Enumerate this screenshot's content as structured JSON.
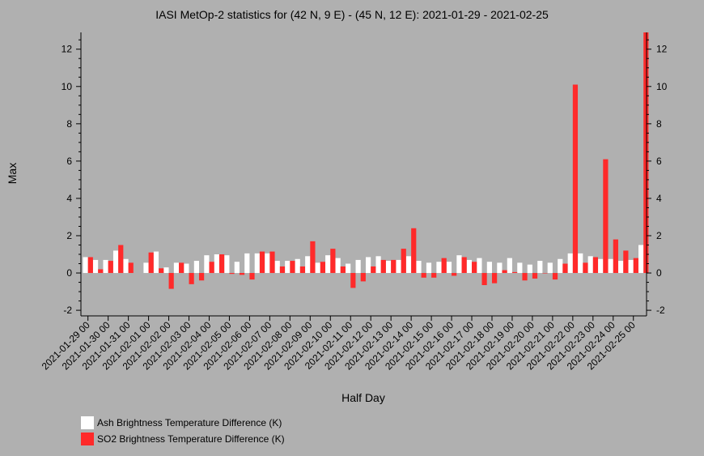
{
  "chart_data": {
    "type": "bar",
    "title": "IASI MetOp-2 statistics for (42 N, 9 E) - (45 N, 12 E): 2021-01-29 - 2021-02-25",
    "xlabel": "Half Day",
    "ylabel": "Max",
    "ylim": [
      -2.3,
      12.9
    ],
    "yticks": [
      -2,
      0,
      2,
      4,
      6,
      8,
      10,
      12
    ],
    "grid": false,
    "legend_position": "bottom-left",
    "categories": [
      "2021-01-29 00",
      "2021-01-29 12",
      "2021-01-30 00",
      "2021-01-30 12",
      "2021-01-31 00",
      "2021-01-31 12",
      "2021-02-01 00",
      "2021-02-01 12",
      "2021-02-02 00",
      "2021-02-02 12",
      "2021-02-03 00",
      "2021-02-03 12",
      "2021-02-04 00",
      "2021-02-04 12",
      "2021-02-05 00",
      "2021-02-05 12",
      "2021-02-06 00",
      "2021-02-06 12",
      "2021-02-07 00",
      "2021-02-07 12",
      "2021-02-08 00",
      "2021-02-08 12",
      "2021-02-09 00",
      "2021-02-09 12",
      "2021-02-10 00",
      "2021-02-10 12",
      "2021-02-11 00",
      "2021-02-11 12",
      "2021-02-12 00",
      "2021-02-12 12",
      "2021-02-13 00",
      "2021-02-13 12",
      "2021-02-14 00",
      "2021-02-14 12",
      "2021-02-15 00",
      "2021-02-15 12",
      "2021-02-16 00",
      "2021-02-16 12",
      "2021-02-17 00",
      "2021-02-17 12",
      "2021-02-18 00",
      "2021-02-18 12",
      "2021-02-19 00",
      "2021-02-19 12",
      "2021-02-20 00",
      "2021-02-20 12",
      "2021-02-21 00",
      "2021-02-21 12",
      "2021-02-22 00",
      "2021-02-22 12",
      "2021-02-23 00",
      "2021-02-23 12",
      "2021-02-24 00",
      "2021-02-24 12",
      "2021-02-25 00",
      "2021-02-25 12"
    ],
    "tick_labels": [
      "2021-01-29 00",
      "2021-01-30 00",
      "2021-01-31 00",
      "2021-02-01 00",
      "2021-02-02 00",
      "2021-02-03 00",
      "2021-02-04 00",
      "2021-02-05 00",
      "2021-02-06 00",
      "2021-02-07 00",
      "2021-02-08 00",
      "2021-02-09 00",
      "2021-02-10 00",
      "2021-02-11 00",
      "2021-02-12 00",
      "2021-02-13 00",
      "2021-02-14 00",
      "2021-02-15 00",
      "2021-02-16 00",
      "2021-02-17 00",
      "2021-02-18 00",
      "2021-02-19 00",
      "2021-02-20 00",
      "2021-02-21 00",
      "2021-02-22 00",
      "2021-02-23 00",
      "2021-02-24 00",
      "2021-02-25 00"
    ],
    "series": [
      {
        "name": "Ash Brightness Temperature Difference (K)",
        "color": "#ffffff",
        "values": [
          0.85,
          0.7,
          0.7,
          1.2,
          0.75,
          null,
          0.55,
          1.15,
          0.3,
          0.55,
          0.5,
          0.65,
          0.95,
          1.0,
          0.95,
          0.6,
          1.05,
          1.05,
          1.05,
          0.65,
          0.65,
          0.75,
          0.9,
          0.55,
          0.95,
          0.8,
          0.5,
          0.7,
          0.85,
          0.9,
          0.65,
          0.7,
          0.9,
          0.65,
          0.55,
          0.6,
          0.6,
          0.95,
          0.7,
          0.8,
          0.6,
          0.55,
          0.8,
          0.55,
          0.45,
          0.65,
          0.55,
          0.75,
          1.05,
          1.05,
          0.9,
          0.75,
          0.75,
          0.65,
          0.7,
          1.5
        ]
      },
      {
        "name": "SO2 Brightness Temperature Difference (K)",
        "color": "#ff2a2a",
        "values": [
          0.85,
          0.2,
          0.65,
          1.5,
          0.55,
          null,
          1.1,
          0.25,
          -0.85,
          0.55,
          -0.6,
          -0.4,
          0.6,
          1.0,
          -0.05,
          -0.1,
          -0.35,
          1.15,
          1.15,
          0.35,
          0.65,
          0.35,
          1.7,
          0.6,
          1.3,
          0.35,
          -0.8,
          -0.45,
          0.35,
          0.7,
          0.7,
          1.3,
          2.4,
          -0.25,
          -0.25,
          0.8,
          -0.15,
          0.85,
          0.6,
          -0.65,
          -0.55,
          0.15,
          0.05,
          -0.4,
          -0.3,
          0.0,
          -0.35,
          0.5,
          10.1,
          0.55,
          0.85,
          6.1,
          1.8,
          1.2,
          0.8,
          12.9
        ]
      }
    ]
  }
}
